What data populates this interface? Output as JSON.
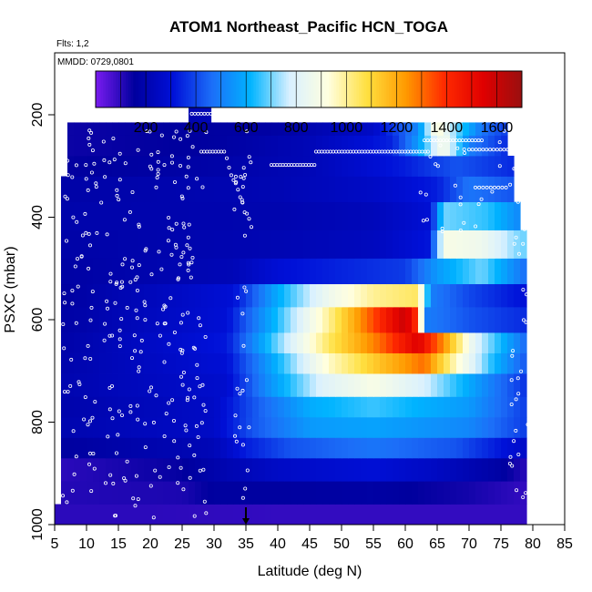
{
  "chart_data": {
    "type": "heatmap",
    "title": "ATOM1 Northeast_Pacific HCN_TOGA",
    "subtitle_flights": "Flts: 1,2",
    "subtitle_dates": "MMDD: 0729,0801",
    "xlabel": "Latitude (deg N)",
    "ylabel": "PSXC (mbar)",
    "xlim": [
      5,
      85
    ],
    "ylim": [
      1000,
      0
    ],
    "xticks": [
      "5",
      "10",
      "15",
      "20",
      "25",
      "30",
      "35",
      "40",
      "45",
      "50",
      "55",
      "60",
      "65",
      "70",
      "75",
      "80",
      "85"
    ],
    "yticks": [
      "200",
      "400",
      "600",
      "800",
      "1000"
    ],
    "colorbar": {
      "range": [
        0,
        1700
      ],
      "ticks": [
        "200",
        "400",
        "600",
        "800",
        "1000",
        "1200",
        "1400",
        "1600"
      ],
      "stops": [
        "#7a1cf0",
        "#00009e",
        "#0010d8",
        "#1c6ef8",
        "#00b4ff",
        "#d8f0ff",
        "#ffffe0",
        "#ffe040",
        "#ff9a00",
        "#ff2a00",
        "#e00000",
        "#9a1010"
      ]
    },
    "marker_latitude": 35,
    "rows": [
      {
        "p_top": 960,
        "p_bot": 1000,
        "x0": 5,
        "x1": 79,
        "values": [
          [
            5,
            100
          ],
          [
            20,
            100
          ],
          [
            40,
            90
          ],
          [
            60,
            90
          ],
          [
            79,
            90
          ]
        ]
      },
      {
        "p_top": 915,
        "p_bot": 960,
        "x0": 6,
        "x1": 79,
        "values": [
          [
            6,
            110
          ],
          [
            25,
            120
          ],
          [
            30,
            160
          ],
          [
            40,
            160
          ],
          [
            55,
            170
          ],
          [
            70,
            130
          ],
          [
            79,
            90
          ]
        ]
      },
      {
        "p_top": 870,
        "p_bot": 915,
        "x0": 6,
        "x1": 79,
        "values": [
          [
            6,
            100
          ],
          [
            25,
            150
          ],
          [
            31,
            200
          ],
          [
            40,
            260
          ],
          [
            55,
            300
          ],
          [
            65,
            250
          ],
          [
            75,
            170
          ],
          [
            79,
            100
          ]
        ]
      },
      {
        "p_top": 830,
        "p_bot": 870,
        "x0": 6,
        "x1": 79,
        "values": [
          [
            6,
            160
          ],
          [
            30,
            220
          ],
          [
            35,
            330
          ],
          [
            42,
            420
          ],
          [
            55,
            480
          ],
          [
            68,
            420
          ],
          [
            79,
            260
          ]
        ]
      },
      {
        "p_top": 790,
        "p_bot": 830,
        "x0": 6,
        "x1": 79,
        "values": [
          [
            6,
            200
          ],
          [
            30,
            260
          ],
          [
            36,
            420
          ],
          [
            45,
            560
          ],
          [
            55,
            580
          ],
          [
            70,
            520
          ],
          [
            79,
            380
          ]
        ]
      },
      {
        "p_top": 750,
        "p_bot": 790,
        "x0": 6,
        "x1": 79,
        "values": [
          [
            6,
            190
          ],
          [
            30,
            260
          ],
          [
            37,
            440
          ],
          [
            45,
            600
          ],
          [
            55,
            660
          ],
          [
            70,
            560
          ],
          [
            79,
            380
          ]
        ]
      },
      {
        "p_top": 705,
        "p_bot": 750,
        "x0": 6,
        "x1": 79,
        "values": [
          [
            6,
            200
          ],
          [
            32,
            280
          ],
          [
            38,
            520
          ],
          [
            47,
            800
          ],
          [
            55,
            900
          ],
          [
            63,
            780
          ],
          [
            72,
            540
          ],
          [
            79,
            360
          ]
        ]
      },
      {
        "p_top": 665,
        "p_bot": 705,
        "x0": 6,
        "x1": 79,
        "values": [
          [
            6,
            190
          ],
          [
            32,
            300
          ],
          [
            40,
            620
          ],
          [
            48,
            950
          ],
          [
            56,
            1150
          ],
          [
            63,
            1300
          ],
          [
            68,
            950
          ],
          [
            74,
            620
          ],
          [
            79,
            420
          ]
        ]
      },
      {
        "p_top": 625,
        "p_bot": 665,
        "x0": 6,
        "x1": 79,
        "values": [
          [
            6,
            180
          ],
          [
            32,
            320
          ],
          [
            40,
            700
          ],
          [
            48,
            1050
          ],
          [
            56,
            1300
          ],
          [
            62,
            1550
          ],
          [
            66,
            1250
          ],
          [
            71,
            800
          ],
          [
            79,
            450
          ]
        ]
      },
      {
        "p_top": 575,
        "p_bot": 625,
        "x0": 6,
        "x1": 79,
        "values": [
          [
            6,
            170
          ],
          [
            32,
            300
          ],
          [
            40,
            640
          ],
          [
            48,
            1000
          ],
          [
            55,
            1350
          ],
          [
            60,
            1600
          ],
          [
            62,
            1350
          ],
          [
            63,
            500
          ],
          [
            70,
            420
          ],
          [
            79,
            350
          ]
        ]
      },
      {
        "p_top": 530,
        "p_bot": 575,
        "x0": 6,
        "x1": 79,
        "values": [
          [
            6,
            160
          ],
          [
            33,
            300
          ],
          [
            40,
            600
          ],
          [
            48,
            860
          ],
          [
            55,
            1000
          ],
          [
            62,
            1050
          ],
          [
            64,
            500
          ],
          [
            70,
            400
          ],
          [
            79,
            300
          ]
        ]
      },
      {
        "p_top": 480,
        "p_bot": 530,
        "x0": 6,
        "x1": 79,
        "values": [
          [
            6,
            170
          ],
          [
            33,
            220
          ],
          [
            40,
            300
          ],
          [
            50,
            340
          ],
          [
            60,
            380
          ],
          [
            65,
            560
          ],
          [
            72,
            700
          ],
          [
            79,
            460
          ]
        ]
      },
      {
        "p_top": 425,
        "p_bot": 480,
        "x0": 6,
        "x1": 79,
        "values": [
          [
            6,
            180
          ],
          [
            40,
            210
          ],
          [
            55,
            240
          ],
          [
            64,
            320
          ],
          [
            66,
            900
          ],
          [
            72,
            860
          ],
          [
            78,
            700
          ]
        ]
      },
      {
        "p_top": 370,
        "p_bot": 425,
        "x0": 6,
        "x1": 78,
        "values": [
          [
            6,
            190
          ],
          [
            40,
            200
          ],
          [
            55,
            230
          ],
          [
            64,
            300
          ],
          [
            66,
            700
          ],
          [
            73,
            650
          ],
          [
            78,
            520
          ]
        ]
      },
      {
        "p_top": 320,
        "p_bot": 370,
        "x0": 6,
        "x1": 77,
        "values": [
          [
            6,
            180
          ],
          [
            40,
            210
          ],
          [
            55,
            260
          ],
          [
            65,
            330
          ],
          [
            70,
            480
          ],
          [
            77,
            420
          ]
        ]
      },
      {
        "p_top": 280,
        "p_bot": 320,
        "x0": 7,
        "x1": 77,
        "values": [
          [
            7,
            150
          ],
          [
            30,
            180
          ],
          [
            45,
            220
          ],
          [
            60,
            330
          ],
          [
            68,
            420
          ],
          [
            77,
            350
          ]
        ]
      },
      {
        "p_top": 240,
        "p_bot": 280,
        "x0": 7,
        "x1": 76,
        "values": [
          [
            7,
            140
          ],
          [
            30,
            160
          ],
          [
            45,
            220
          ],
          [
            58,
            340
          ],
          [
            62,
            560
          ],
          [
            66,
            900
          ],
          [
            70,
            500
          ],
          [
            76,
            350
          ]
        ]
      },
      {
        "p_top": 215,
        "p_bot": 240,
        "x0": 7,
        "x1": 76,
        "values": [
          [
            7,
            140
          ],
          [
            40,
            170
          ],
          [
            55,
            260
          ],
          [
            62,
            520
          ],
          [
            65,
            950
          ],
          [
            68,
            700
          ],
          [
            72,
            480
          ],
          [
            76,
            380
          ]
        ]
      },
      {
        "p_top": 160,
        "p_bot": 215,
        "x0": 26,
        "x1": 29.5,
        "values": [
          [
            26,
            200
          ],
          [
            29.5,
            220
          ]
        ]
      }
    ]
  }
}
